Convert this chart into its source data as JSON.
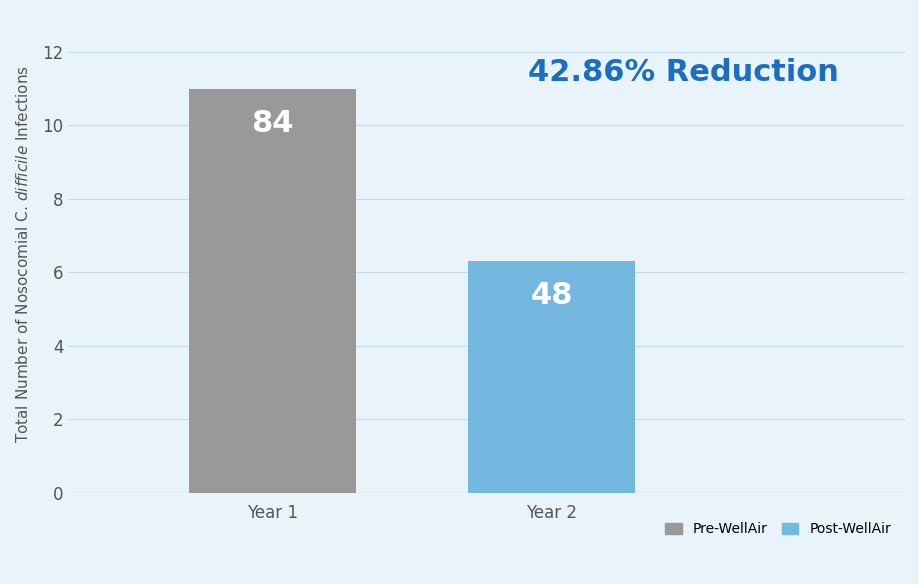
{
  "categories": [
    "Year 1",
    "Year 2"
  ],
  "values": [
    11.0,
    6.3
  ],
  "bar_labels": [
    "84",
    "48"
  ],
  "bar_colors": [
    "#999999",
    "#74B8E0"
  ],
  "background_color": "#E8F4FA",
  "ylim": [
    0,
    13
  ],
  "yticks": [
    0,
    2,
    4,
    6,
    8,
    10,
    12
  ],
  "annotation_text": "42.86% Reduction",
  "annotation_color": "#1B6EC2",
  "legend_labels": [
    "Pre-WellAir",
    "Post-WellAir"
  ],
  "legend_colors": [
    "#999999",
    "#74B8E0"
  ],
  "bar_label_fontsize": 22,
  "bar_label_color": "#FFFFFF",
  "ylabel_fontsize": 11,
  "tick_fontsize": 12,
  "annotation_fontsize": 22,
  "grid_color": "#C5DCF0",
  "bar_width": 0.18,
  "x_positions": [
    0.32,
    0.62
  ],
  "xlim": [
    0.1,
    1.0
  ]
}
